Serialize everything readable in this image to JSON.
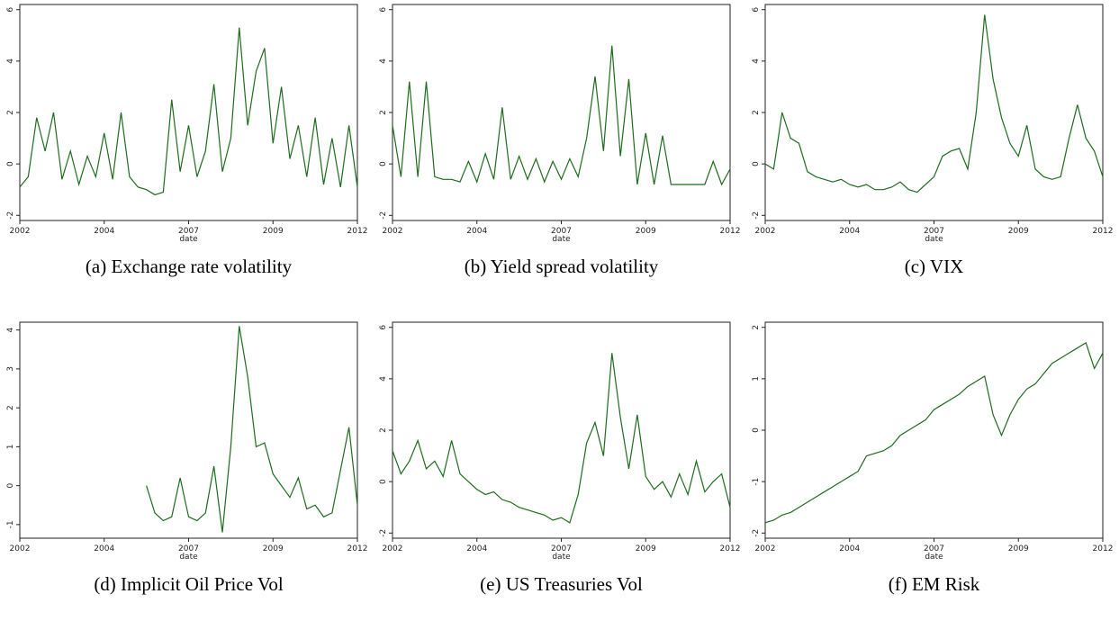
{
  "chart_data": [
    {
      "type": "line",
      "title": "(a) Exchange rate volatility",
      "xlabel": "date",
      "color": "#1e6b1e",
      "x": [
        2002,
        2002.25,
        2002.5,
        2002.75,
        2003,
        2003.25,
        2003.5,
        2003.75,
        2004,
        2004.25,
        2004.5,
        2004.75,
        2005,
        2005.25,
        2005.5,
        2005.75,
        2006,
        2006.25,
        2006.5,
        2006.75,
        2007,
        2007.25,
        2007.5,
        2007.75,
        2008,
        2008.25,
        2008.5,
        2008.75,
        2009,
        2009.25,
        2009.5,
        2009.75,
        2010,
        2010.25,
        2010.5,
        2010.75,
        2011,
        2011.25,
        2011.5,
        2011.75,
        2012
      ],
      "values": [
        -0.9,
        -0.5,
        1.8,
        0.5,
        2.0,
        -0.6,
        0.5,
        -0.8,
        0.3,
        -0.5,
        1.2,
        -0.6,
        2.0,
        -0.5,
        -0.9,
        -1.0,
        -1.2,
        -1.1,
        2.5,
        -0.3,
        1.5,
        -0.5,
        0.5,
        3.1,
        -0.3,
        1.0,
        5.3,
        1.5,
        3.6,
        4.5,
        0.8,
        3.0,
        0.2,
        1.5,
        -0.5,
        1.8,
        -0.8,
        1.0,
        -0.9,
        1.5,
        -0.9
      ],
      "xlim": [
        2002,
        2012
      ],
      "xticks": [
        2002,
        {
          "value": 2004.5,
          "label": "2004"
        },
        2007,
        {
          "value": 2009.5,
          "label": "2009"
        },
        2012
      ],
      "ylim": [
        -2.2,
        6.2
      ],
      "yticks": [
        -2,
        0,
        2,
        4,
        6
      ]
    },
    {
      "type": "line",
      "title": "(b) Yield spread volatility",
      "xlabel": "date",
      "color": "#1e6b1e",
      "x": [
        2002,
        2002.25,
        2002.5,
        2002.75,
        2003,
        2003.25,
        2003.5,
        2003.75,
        2004,
        2004.25,
        2004.5,
        2004.75,
        2005,
        2005.25,
        2005.5,
        2005.75,
        2006,
        2006.25,
        2006.5,
        2006.75,
        2007,
        2007.25,
        2007.5,
        2007.75,
        2008,
        2008.25,
        2008.5,
        2008.75,
        2009,
        2009.25,
        2009.5,
        2009.75,
        2010,
        2010.25,
        2010.5,
        2010.75,
        2011,
        2011.25,
        2011.5,
        2011.75,
        2012
      ],
      "values": [
        1.5,
        -0.5,
        3.2,
        -0.5,
        3.2,
        -0.5,
        -0.6,
        -0.6,
        -0.7,
        0.1,
        -0.7,
        0.4,
        -0.6,
        2.2,
        -0.6,
        0.3,
        -0.6,
        0.2,
        -0.7,
        0.1,
        -0.6,
        0.2,
        -0.5,
        1.0,
        3.4,
        0.5,
        4.6,
        0.3,
        3.3,
        -0.8,
        1.2,
        -0.8,
        1.1,
        -0.8,
        -0.8,
        -0.8,
        -0.8,
        -0.8,
        0.1,
        -0.8,
        -0.2
      ],
      "xlim": [
        2002,
        2012
      ],
      "xticks": [
        2002,
        {
          "value": 2004.5,
          "label": "2004"
        },
        2007,
        {
          "value": 2009.5,
          "label": "2009"
        },
        2012
      ],
      "ylim": [
        -2.2,
        6.2
      ],
      "yticks": [
        -2,
        0,
        2,
        4,
        6
      ]
    },
    {
      "type": "line",
      "title": "(c) VIX",
      "xlabel": "date",
      "color": "#1e6b1e",
      "x": [
        2002,
        2002.25,
        2002.5,
        2002.75,
        2003,
        2003.25,
        2003.5,
        2003.75,
        2004,
        2004.25,
        2004.5,
        2004.75,
        2005,
        2005.25,
        2005.5,
        2005.75,
        2006,
        2006.25,
        2006.5,
        2006.75,
        2007,
        2007.25,
        2007.5,
        2007.75,
        2008,
        2008.25,
        2008.5,
        2008.75,
        2009,
        2009.25,
        2009.5,
        2009.75,
        2010,
        2010.25,
        2010.5,
        2010.75,
        2011,
        2011.25,
        2011.5,
        2011.75,
        2012
      ],
      "values": [
        0.0,
        -0.2,
        2.0,
        1.0,
        0.8,
        -0.3,
        -0.5,
        -0.6,
        -0.7,
        -0.6,
        -0.8,
        -0.9,
        -0.8,
        -1.0,
        -1.0,
        -0.9,
        -0.7,
        -1.0,
        -1.1,
        -0.8,
        -0.5,
        0.3,
        0.5,
        0.6,
        -0.2,
        2.0,
        5.8,
        3.3,
        1.8,
        0.8,
        0.3,
        1.5,
        -0.2,
        -0.5,
        -0.6,
        -0.5,
        1.0,
        2.3,
        1.0,
        0.5,
        -0.5
      ],
      "xlim": [
        2002,
        2012
      ],
      "xticks": [
        2002,
        {
          "value": 2004.5,
          "label": "2004"
        },
        2007,
        {
          "value": 2009.5,
          "label": "2009"
        },
        2012
      ],
      "ylim": [
        -2.2,
        6.2
      ],
      "yticks": [
        -2,
        0,
        2,
        4,
        6
      ]
    },
    {
      "type": "line",
      "title": "(d) Implicit Oil Price Vol",
      "xlabel": "date",
      "color": "#1e6b1e",
      "x": [
        2002,
        2002.25,
        2002.5,
        2002.75,
        2003,
        2003.25,
        2003.5,
        2003.75,
        2004,
        2004.25,
        2004.5,
        2004.75,
        2005,
        2005.25,
        2005.5,
        2005.75,
        2006,
        2006.25,
        2006.5,
        2006.75,
        2007,
        2007.25,
        2007.5,
        2007.75,
        2008,
        2008.25,
        2008.5,
        2008.75,
        2009,
        2009.25,
        2009.5,
        2009.75,
        2010,
        2010.25,
        2010.5,
        2010.75,
        2011,
        2011.25,
        2011.5,
        2011.75,
        2012
      ],
      "values": [
        null,
        null,
        null,
        null,
        null,
        null,
        null,
        null,
        null,
        null,
        null,
        null,
        null,
        null,
        null,
        0.0,
        -0.7,
        -0.9,
        -0.8,
        0.2,
        -0.8,
        -0.9,
        -0.7,
        0.5,
        -1.2,
        1.0,
        4.1,
        2.8,
        1.0,
        1.1,
        0.3,
        0.0,
        -0.3,
        0.2,
        -0.6,
        -0.5,
        -0.8,
        -0.7,
        0.4,
        1.5,
        -0.5
      ],
      "xlim": [
        2002,
        2012
      ],
      "xticks": [
        2002,
        {
          "value": 2004.5,
          "label": "2004"
        },
        2007,
        {
          "value": 2009.5,
          "label": "2009"
        },
        2012
      ],
      "ylim": [
        -1.35,
        4.2
      ],
      "yticks": [
        -1,
        0,
        1,
        2,
        3,
        4
      ]
    },
    {
      "type": "line",
      "title": "(e) US Treasuries Vol",
      "xlabel": "date",
      "color": "#1e6b1e",
      "x": [
        2002,
        2002.25,
        2002.5,
        2002.75,
        2003,
        2003.25,
        2003.5,
        2003.75,
        2004,
        2004.25,
        2004.5,
        2004.75,
        2005,
        2005.25,
        2005.5,
        2005.75,
        2006,
        2006.25,
        2006.5,
        2006.75,
        2007,
        2007.25,
        2007.5,
        2007.75,
        2008,
        2008.25,
        2008.5,
        2008.75,
        2009,
        2009.25,
        2009.5,
        2009.75,
        2010,
        2010.25,
        2010.5,
        2010.75,
        2011,
        2011.25,
        2011.5,
        2011.75,
        2012
      ],
      "values": [
        1.2,
        0.3,
        0.8,
        1.6,
        0.5,
        0.8,
        0.2,
        1.6,
        0.3,
        0.0,
        -0.3,
        -0.5,
        -0.4,
        -0.7,
        -0.8,
        -1.0,
        -1.1,
        -1.2,
        -1.3,
        -1.5,
        -1.4,
        -1.6,
        -0.5,
        1.5,
        2.3,
        1.0,
        5.0,
        2.5,
        0.5,
        2.6,
        0.2,
        -0.3,
        0.0,
        -0.6,
        0.3,
        -0.5,
        0.8,
        -0.4,
        0.0,
        0.3,
        -1.0
      ],
      "xlim": [
        2002,
        2012
      ],
      "xticks": [
        2002,
        {
          "value": 2004.5,
          "label": "2004"
        },
        2007,
        {
          "value": 2009.5,
          "label": "2009"
        },
        2012
      ],
      "ylim": [
        -2.2,
        6.2
      ],
      "yticks": [
        -2,
        0,
        2,
        4,
        6
      ]
    },
    {
      "type": "line",
      "title": "(f) EM Risk",
      "xlabel": "date",
      "color": "#1e6b1e",
      "x": [
        2002,
        2002.25,
        2002.5,
        2002.75,
        2003,
        2003.25,
        2003.5,
        2003.75,
        2004,
        2004.25,
        2004.5,
        2004.75,
        2005,
        2005.25,
        2005.5,
        2005.75,
        2006,
        2006.25,
        2006.5,
        2006.75,
        2007,
        2007.25,
        2007.5,
        2007.75,
        2008,
        2008.25,
        2008.5,
        2008.75,
        2009,
        2009.25,
        2009.5,
        2009.75,
        2010,
        2010.25,
        2010.5,
        2010.75,
        2011,
        2011.25,
        2011.5,
        2011.75,
        2012
      ],
      "values": [
        -1.8,
        -1.75,
        -1.65,
        -1.6,
        -1.5,
        -1.4,
        -1.3,
        -1.2,
        -1.1,
        -1.0,
        -0.9,
        -0.8,
        -0.5,
        -0.45,
        -0.4,
        -0.3,
        -0.1,
        0.0,
        0.1,
        0.2,
        0.4,
        0.5,
        0.6,
        0.7,
        0.85,
        0.95,
        1.05,
        0.3,
        -0.1,
        0.3,
        0.6,
        0.8,
        0.9,
        1.1,
        1.3,
        1.4,
        1.5,
        1.6,
        1.7,
        1.2,
        1.5
      ],
      "xlim": [
        2002,
        2012
      ],
      "xticks": [
        2002,
        {
          "value": 2004.5,
          "label": "2004"
        },
        2007,
        {
          "value": 2009.5,
          "label": "2009"
        },
        2012
      ],
      "ylim": [
        -2.1,
        2.1
      ],
      "yticks": [
        -2,
        -1,
        0,
        1,
        2
      ]
    }
  ]
}
